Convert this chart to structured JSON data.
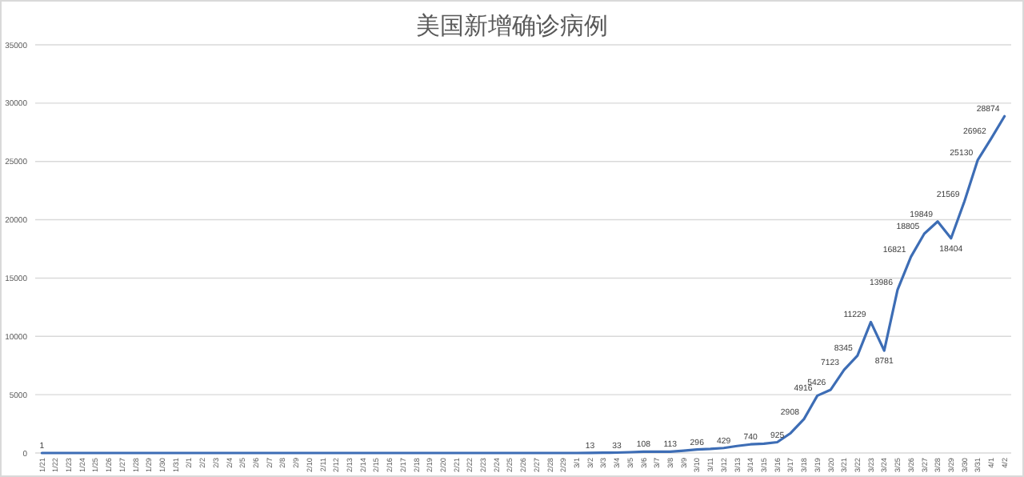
{
  "chart_data": {
    "type": "line",
    "title": "美国新增确诊病例",
    "categories": [
      "1/21",
      "1/22",
      "1/23",
      "1/24",
      "1/25",
      "1/26",
      "1/27",
      "1/28",
      "1/29",
      "1/30",
      "1/31",
      "2/1",
      "2/2",
      "2/3",
      "2/4",
      "2/5",
      "2/6",
      "2/7",
      "2/8",
      "2/9",
      "2/10",
      "2/11",
      "2/12",
      "2/13",
      "2/14",
      "2/15",
      "2/16",
      "2/17",
      "2/18",
      "2/19",
      "2/20",
      "2/21",
      "2/22",
      "2/23",
      "2/24",
      "2/25",
      "2/26",
      "2/27",
      "2/28",
      "2/29",
      "3/1",
      "3/2",
      "3/3",
      "3/4",
      "3/5",
      "3/6",
      "3/7",
      "3/8",
      "3/9",
      "3/10",
      "3/11",
      "3/12",
      "3/13",
      "3/14",
      "3/15",
      "3/16",
      "3/17",
      "3/18",
      "3/19",
      "3/20",
      "3/21",
      "3/22",
      "3/23",
      "3/24",
      "3/25",
      "3/26",
      "3/27",
      "3/28",
      "3/29",
      "3/30",
      "3/31",
      "4/1",
      "4/2"
    ],
    "values": [
      1,
      0,
      0,
      0,
      0,
      0,
      0,
      0,
      0,
      0,
      0,
      0,
      0,
      0,
      0,
      0,
      0,
      0,
      0,
      0,
      0,
      0,
      0,
      0,
      0,
      0,
      0,
      0,
      0,
      0,
      0,
      0,
      0,
      0,
      0,
      0,
      0,
      0,
      0,
      0,
      0,
      13,
      20,
      33,
      70,
      108,
      110,
      113,
      200,
      296,
      350,
      429,
      600,
      740,
      800,
      925,
      1700,
      2908,
      4916,
      5426,
      7123,
      8345,
      11229,
      8781,
      13986,
      16821,
      18805,
      19849,
      18404,
      21569,
      25130,
      26962,
      28874
    ],
    "value_labels": [
      "1",
      null,
      null,
      null,
      null,
      null,
      null,
      null,
      null,
      null,
      null,
      null,
      null,
      null,
      null,
      null,
      null,
      null,
      null,
      null,
      null,
      null,
      null,
      null,
      null,
      null,
      null,
      null,
      null,
      null,
      null,
      null,
      null,
      null,
      null,
      null,
      null,
      null,
      null,
      null,
      null,
      "13",
      null,
      "33",
      null,
      "108",
      null,
      "113",
      null,
      "296",
      null,
      "429",
      null,
      "740",
      null,
      "925",
      null,
      "2908",
      "4916",
      "5426",
      "7123",
      "8345",
      "11229",
      "8781",
      "13986",
      "16821",
      "18805",
      "19849",
      "18404",
      "21569",
      "25130",
      "26962",
      "28874"
    ],
    "color": "#3d6db5",
    "ylim": [
      0,
      35000
    ],
    "yticks": [
      0,
      5000,
      10000,
      15000,
      20000,
      25000,
      30000,
      35000
    ],
    "grid": "y"
  }
}
